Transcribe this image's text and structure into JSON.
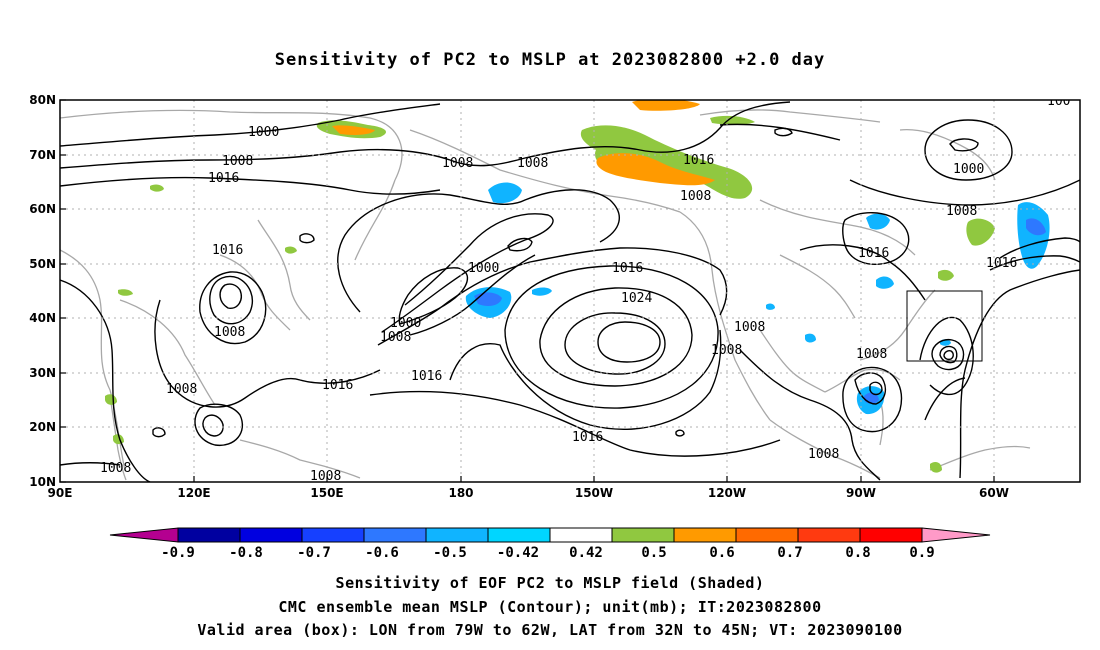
{
  "title": "Sensitivity of PC2 to MSLP at 2023082800 +2.0 day",
  "captions": [
    "Sensitivity of EOF PC2 to MSLP field (Shaded)",
    "CMC ensemble mean MSLP (Contour); unit(mb); IT:2023082800",
    "Valid area (box): LON from 79W to 62W, LAT from 32N to 45N; VT: 2023090100"
  ],
  "map": {
    "lon_labels": [
      "90E",
      "120E",
      "150E",
      "180",
      "150W",
      "120W",
      "90W",
      "60W"
    ],
    "lat_labels": [
      "80N",
      "70N",
      "60N",
      "50N",
      "40N",
      "30N",
      "20N",
      "10N"
    ],
    "contour_labels": [
      "1000",
      "1008",
      "1016",
      "1008",
      "1016",
      "1008",
      "1008",
      "1016",
      "1008",
      "1000",
      "1000",
      "1008",
      "1016",
      "1016",
      "1024",
      "1016",
      "1008",
      "1008",
      "1016",
      "1008",
      "1008",
      "1016",
      "1008",
      "1000",
      "1008",
      "1016",
      "100",
      "1008",
      "1008"
    ]
  },
  "valid_box": {
    "lon_min": -79,
    "lon_max": -62,
    "lat_min": 32,
    "lat_max": 45
  },
  "colorbar": {
    "labels": [
      "-0.9",
      "-0.8",
      "-0.7",
      "-0.6",
      "-0.5",
      "-0.42",
      "0.42",
      "0.5",
      "0.6",
      "0.7",
      "0.8",
      "0.9"
    ],
    "colors": [
      "#b40090",
      "#0000a0",
      "#0000e0",
      "#1640ff",
      "#2e78ff",
      "#10b4ff",
      "#00d6ff",
      "#ffffff",
      "#90c840",
      "#ff9a00",
      "#ff6a00",
      "#ff3a10",
      "#ff0000",
      "#ff9ac8"
    ]
  }
}
